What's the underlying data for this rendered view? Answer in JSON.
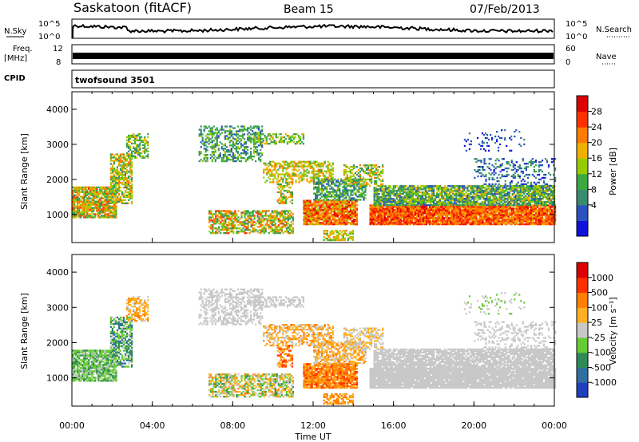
{
  "header": {
    "station": "Saskatoon (fitACF)",
    "beam": "Beam 15",
    "date": "07/Feb/2013"
  },
  "strips": {
    "nsky_label": "N.Sky",
    "nsearch_label": "N.Search",
    "nsky_ticks": [
      "10^5",
      "10^0"
    ],
    "nsearch_ticks": [
      "10^5",
      "10^0"
    ],
    "freq_label_1": "Freq.",
    "freq_label_2": "[MHz]",
    "freq_ticks": [
      "12",
      "8"
    ],
    "nave_label": "Nave",
    "nave_ticks": [
      "60",
      "0"
    ],
    "cpid_label": "CPID",
    "cpid_value": "twofsound 3501"
  },
  "chart_data": [
    {
      "type": "heatmap",
      "name": "power",
      "ylabel": "Slant Range [km]",
      "xlabel": "",
      "ylim": [
        200,
        4500
      ],
      "yticks": [
        "4000",
        "3000",
        "2000",
        "1000"
      ],
      "colorbar_label": "Power [dB]",
      "colorbar_ticks": [
        "28",
        "24",
        "20",
        "16",
        "12",
        "8",
        "4"
      ],
      "colors": [
        "#1010dd",
        "#2a52c0",
        "#3a8a70",
        "#3aaa40",
        "#99cc00",
        "#f0b000",
        "#ff7a00",
        "#ff3000",
        "#dd0000"
      ]
    },
    {
      "type": "heatmap",
      "name": "velocity",
      "ylabel": "Slant Range [km]",
      "xlabel": "Time UT",
      "ylim": [
        200,
        4500
      ],
      "yticks": [
        "4000",
        "3000",
        "2000",
        "1000"
      ],
      "xticks": [
        "00:00",
        "04:00",
        "08:00",
        "12:00",
        "16:00",
        "20:00",
        "00:00"
      ],
      "colorbar_label": "Velocity [m s⁻¹]",
      "colorbar_ticks": [
        "1000",
        "500",
        "100",
        "25",
        "-25",
        "-100",
        "-500",
        "-1000"
      ],
      "colors": [
        "#2040c0",
        "#3070a0",
        "#2e8b57",
        "#66cc33",
        "#c8c8c8",
        "#ffb020",
        "#ff8000",
        "#ff3000",
        "#dd0000"
      ]
    }
  ]
}
